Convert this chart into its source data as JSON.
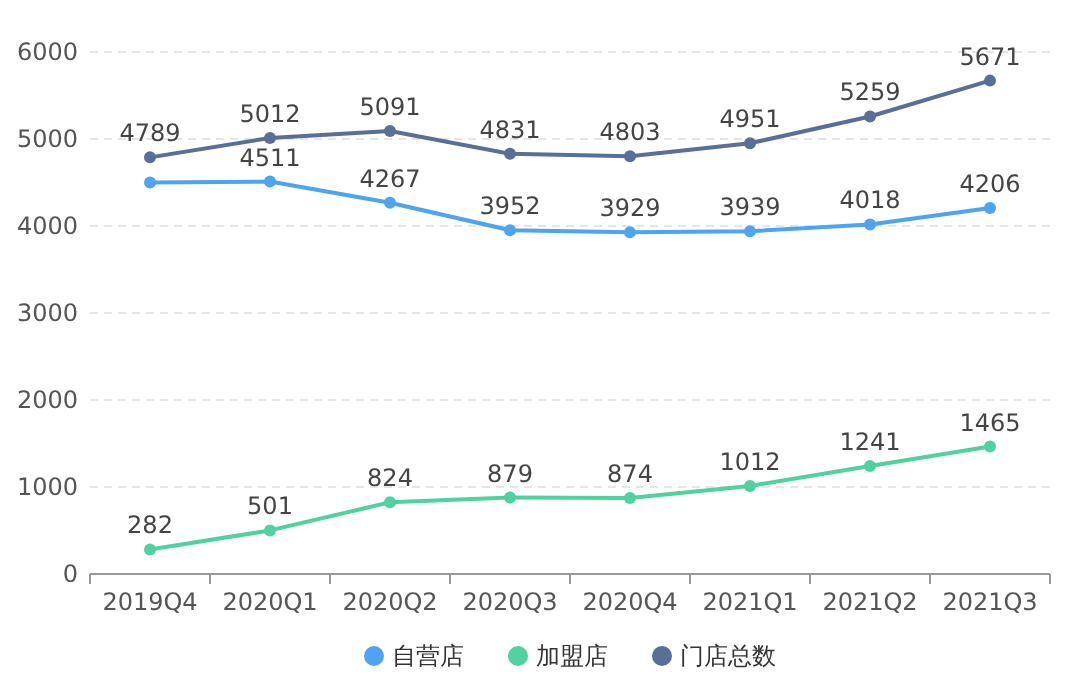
{
  "chart_data": {
    "type": "line",
    "categories": [
      "2019Q4",
      "2020Q1",
      "2020Q2",
      "2020Q3",
      "2020Q4",
      "2021Q1",
      "2021Q2",
      "2021Q3"
    ],
    "series": [
      {
        "name": "自营店",
        "color": "#4ea4f0",
        "values": [
          4500,
          4511,
          4267,
          3952,
          3929,
          3939,
          4018,
          4206
        ],
        "value_labels": [
          null,
          "4511",
          "4267",
          "3952",
          "3929",
          "3939",
          "4018",
          "4206"
        ]
      },
      {
        "name": "加盟店",
        "color": "#4fd1a0",
        "values": [
          282,
          501,
          824,
          879,
          874,
          1012,
          1241,
          1465
        ]
      },
      {
        "name": "门店总数",
        "color": "#5a6e9a",
        "values": [
          4789,
          5012,
          5091,
          4831,
          4803,
          4951,
          5259,
          5671
        ]
      }
    ],
    "ylim": [
      0,
      6000
    ],
    "yticks": [
      0,
      1000,
      2000,
      3000,
      4000,
      5000,
      6000
    ],
    "grid": "y",
    "data_labels": true,
    "legend": "bottom",
    "marker": "circle",
    "line_style": "solid"
  }
}
